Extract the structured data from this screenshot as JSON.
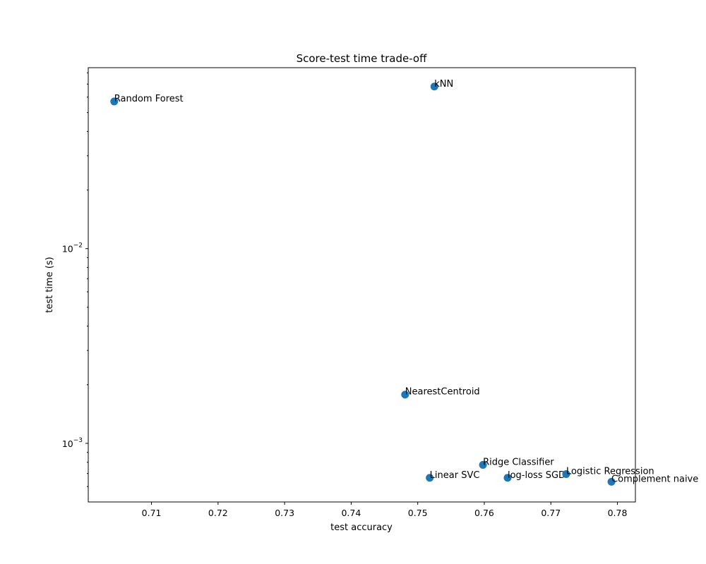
{
  "chart_data": {
    "type": "scatter",
    "title": "Score-test time trade-off",
    "xlabel": "test accuracy",
    "ylabel": "test time (s)",
    "xlim": [
      0.7005,
      0.7827
    ],
    "ylim": [
      0.0005,
      0.085
    ],
    "yscale": "log",
    "grid": false,
    "point_color": "#1f77b4",
    "x_ticks": [
      {
        "value": 0.71,
        "label": "0.71"
      },
      {
        "value": 0.72,
        "label": "0.72"
      },
      {
        "value": 0.73,
        "label": "0.73"
      },
      {
        "value": 0.74,
        "label": "0.74"
      },
      {
        "value": 0.75,
        "label": "0.75"
      },
      {
        "value": 0.76,
        "label": "0.76"
      },
      {
        "value": 0.77,
        "label": "0.77"
      },
      {
        "value": 0.78,
        "label": "0.78"
      }
    ],
    "y_major_ticks": [
      {
        "value": 0.001,
        "base": "10",
        "exp": "−3"
      },
      {
        "value": 0.01,
        "base": "10",
        "exp": "−2"
      }
    ],
    "y_minor_ticks": [
      0.0006,
      0.0007,
      0.0008,
      0.0009,
      0.002,
      0.003,
      0.004,
      0.005,
      0.006,
      0.007,
      0.008,
      0.009,
      0.02,
      0.03,
      0.04,
      0.05,
      0.06,
      0.07,
      0.08
    ],
    "points": [
      {
        "label": "Random Forest",
        "x": 0.7044,
        "y": 0.057
      },
      {
        "label": "kNN",
        "x": 0.7525,
        "y": 0.068
      },
      {
        "label": "NearestCentroid",
        "x": 0.7481,
        "y": 0.00178
      },
      {
        "label": "Ridge Classifier",
        "x": 0.7598,
        "y": 0.000775
      },
      {
        "label": "Linear SVC",
        "x": 0.7518,
        "y": 0.000665
      },
      {
        "label": "log-loss SGD",
        "x": 0.7635,
        "y": 0.000665
      },
      {
        "label": "Logistic Regression",
        "x": 0.7723,
        "y": 0.000695
      },
      {
        "label": "Complement naive",
        "x": 0.7791,
        "y": 0.000635
      }
    ]
  }
}
